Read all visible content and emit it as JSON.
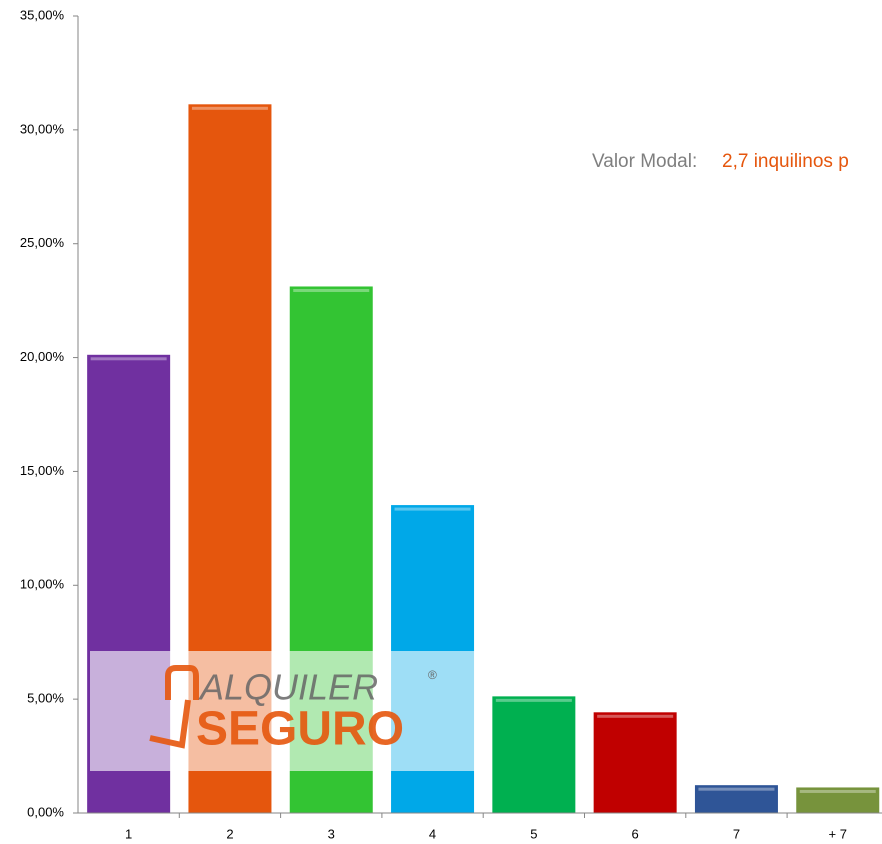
{
  "chart_data": {
    "type": "bar",
    "annotation": {
      "label": "Valor Modal:",
      "value": "2,7 inquilinos p"
    },
    "watermark": {
      "line1": "ALQUILER",
      "line2": "SEGURO",
      "mark": "®"
    },
    "categories": [
      "1",
      "2",
      "3",
      "4",
      "5",
      "6",
      "7",
      "+ 7"
    ],
    "values": [
      20.1,
      31.1,
      23.1,
      13.5,
      5.1,
      4.4,
      1.2,
      1.1
    ],
    "colors": [
      "#7030a0",
      "#e5560d",
      "#33c433",
      "#00a8e8",
      "#00b050",
      "#c00000",
      "#2f5597",
      "#77933c"
    ],
    "ylim": [
      0,
      35
    ],
    "yticks": [
      {
        "value": 0,
        "label": "0,00%"
      },
      {
        "value": 5,
        "label": "5,00%"
      },
      {
        "value": 10,
        "label": "10,00%"
      },
      {
        "value": 15,
        "label": "15,00%"
      },
      {
        "value": 20,
        "label": "20,00%"
      },
      {
        "value": 25,
        "label": "25,00%"
      },
      {
        "value": 30,
        "label": "30,00%"
      },
      {
        "value": 35,
        "label": "35,00%"
      }
    ],
    "grid": false
  }
}
